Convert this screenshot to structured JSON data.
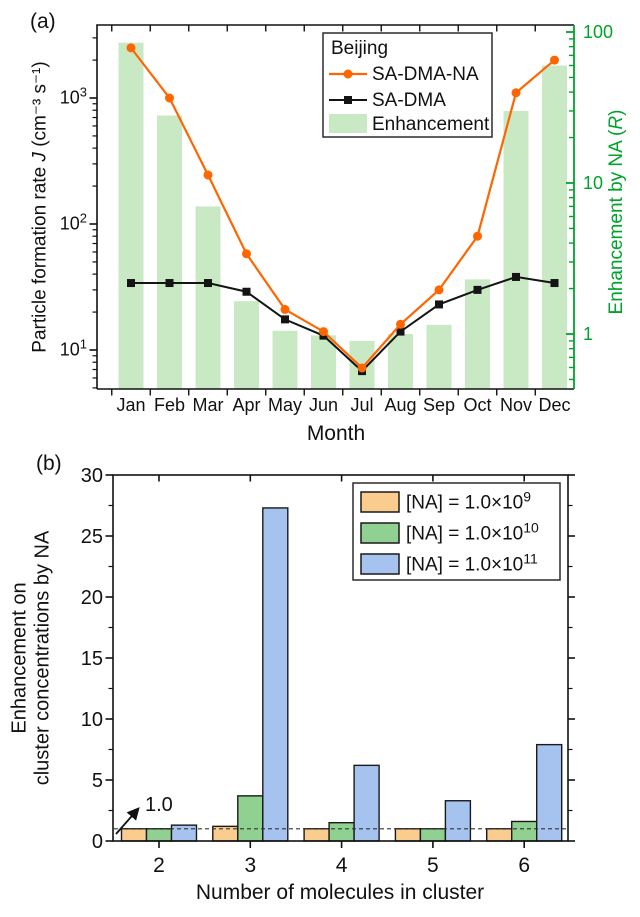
{
  "colors": {
    "accent_orange": "#FF6600",
    "line_black": "#141414",
    "bar_light_green": "#C9E8C4",
    "axis_green": "#00A32A",
    "bar_orange": "#FACC8E",
    "bar_green": "#90D090",
    "bar_blue": "#A6C3F0"
  },
  "chart_data": [
    {
      "type": "line+bar",
      "panel_label": "(a)",
      "xlabel": "Month",
      "x": [
        "Jan",
        "Feb",
        "Mar",
        "Apr",
        "May",
        "Jun",
        "Jul",
        "Aug",
        "Sep",
        "Oct",
        "Nov",
        "Dec"
      ],
      "ylabel_left": {
        "pre": "Particle formation rate ",
        "italic": "J",
        "post": " (cm⁻³ s⁻¹)"
      },
      "ylabel_right": {
        "pre": "Enhancement by NA (",
        "italic": "R",
        "post": ")"
      },
      "y_left_scale": "log",
      "y_left_ticks": [
        10,
        100,
        1000
      ],
      "y_left_range": [
        4.9,
        3800
      ],
      "y_right_scale": "log",
      "y_right_ticks": [
        1,
        10,
        100
      ],
      "y_right_range": [
        0.45,
        110
      ],
      "legend": {
        "title": "Beijing",
        "items": [
          {
            "label": "SA-DMA-NA",
            "marker": "line-circle",
            "color": "#FF6600"
          },
          {
            "label": "SA-DMA",
            "marker": "line-square",
            "color": "#141414"
          },
          {
            "label": "Enhancement",
            "marker": "bar",
            "color": "#C9E8C4"
          }
        ]
      },
      "series": [
        {
          "name": "SA-DMA-NA",
          "axis": "left",
          "values": [
            2500,
            1000,
            245,
            58,
            21,
            14,
            7.2,
            16,
            30,
            80,
            1100,
            2000
          ]
        },
        {
          "name": "SA-DMA",
          "axis": "left",
          "values": [
            34,
            34,
            34,
            29,
            17.5,
            13,
            6.8,
            14,
            23,
            30,
            38,
            34
          ]
        },
        {
          "name": "Enhancement",
          "axis": "right",
          "kind": "bar",
          "values": [
            85,
            28,
            7,
            1.65,
            1.05,
            0.98,
            0.9,
            1.0,
            1.15,
            2.3,
            30,
            60
          ]
        }
      ]
    },
    {
      "type": "bar",
      "panel_label": "(b)",
      "xlabel": "Number of molecules in cluster",
      "categories": [
        "2",
        "3",
        "4",
        "5",
        "6"
      ],
      "ylabel_lines": [
        "Enhancement on",
        "cluster concentrations by NA"
      ],
      "ylim": [
        0,
        30
      ],
      "yticks": [
        0,
        5,
        10,
        15,
        20,
        25,
        30
      ],
      "minor_step": 2.5,
      "reference_line": {
        "label": "1.0",
        "value": 1.0
      },
      "legend": {
        "items": [
          {
            "base": "[NA] = 1.0×10",
            "exp": "9",
            "color": "#FACC8E"
          },
          {
            "base": "[NA] = 1.0×10",
            "exp": "10",
            "color": "#90D090"
          },
          {
            "base": "[NA] = 1.0×10",
            "exp": "11",
            "color": "#A6C3F0"
          }
        ]
      },
      "series": [
        {
          "name": "[NA] = 1.0×10^9",
          "color": "#FACC8E",
          "values": [
            1.0,
            1.2,
            1.0,
            1.0,
            1.0
          ]
        },
        {
          "name": "[NA] = 1.0×10^10",
          "color": "#90D090",
          "values": [
            1.0,
            3.7,
            1.5,
            1.0,
            1.6
          ]
        },
        {
          "name": "[NA] = 1.0×10^11",
          "color": "#A6C3F0",
          "values": [
            1.3,
            27.3,
            6.2,
            3.3,
            7.9
          ]
        }
      ]
    }
  ]
}
